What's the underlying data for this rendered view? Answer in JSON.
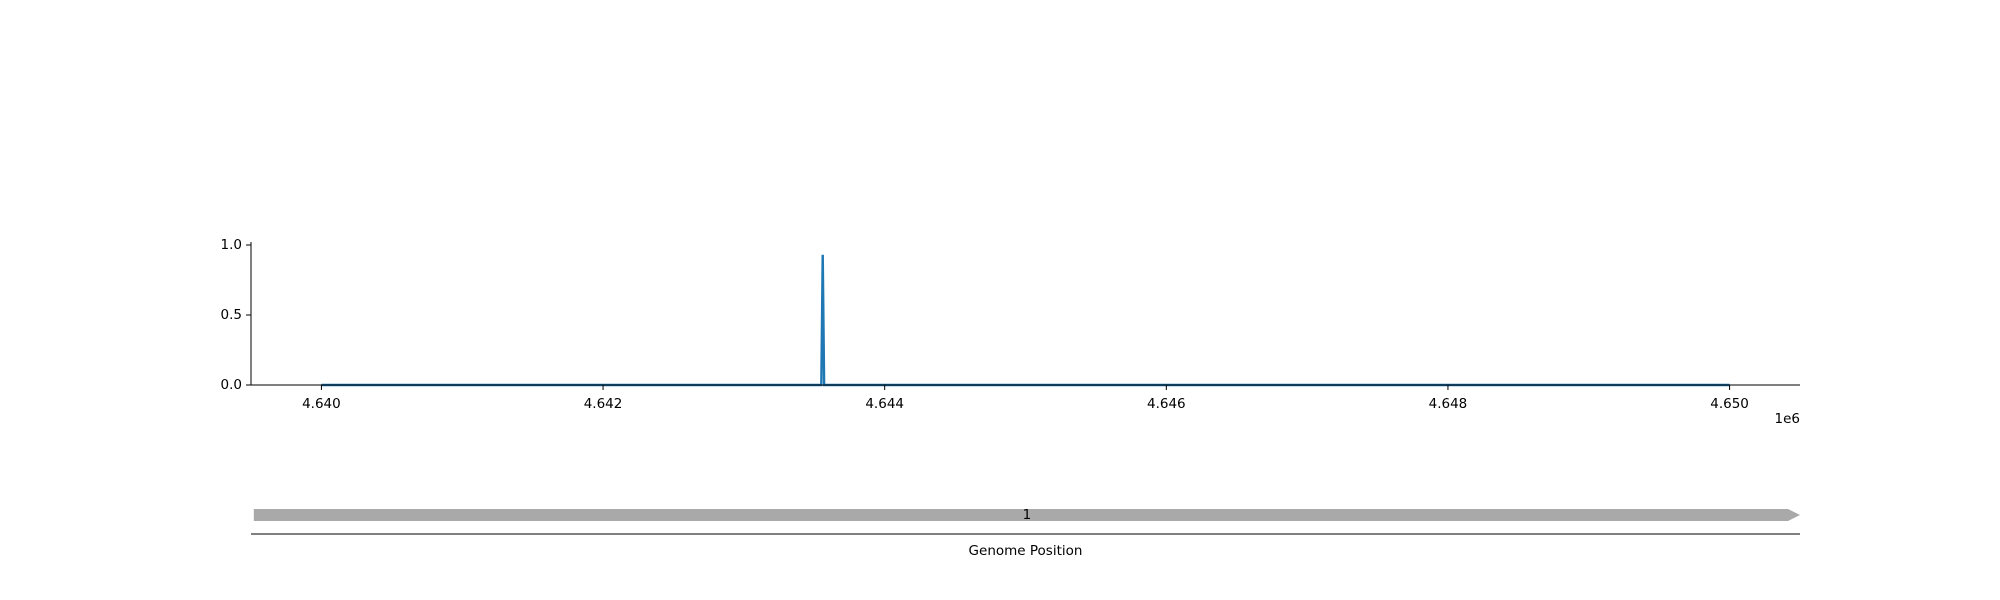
{
  "chart_data": [
    {
      "type": "line",
      "x": [
        4640000,
        4643550,
        4643560,
        4643570,
        4650000
      ],
      "series": [
        {
          "values": [
            0.0,
            0.0,
            0.93,
            0.0,
            0.0
          ],
          "color": "#1f77b4"
        }
      ],
      "ylim": [
        0.0,
        1.0
      ],
      "yticks": [
        0.0,
        0.5,
        1.0
      ],
      "ytick_labels": [
        "0.0",
        "0.5",
        "1.0"
      ],
      "xlim": [
        4639500,
        4650500
      ],
      "xticks": [
        4640000,
        4642000,
        4644000,
        4646000,
        4648000,
        4650000
      ],
      "xtick_labels": [
        "4.640",
        "4.642",
        "4.644",
        "4.646",
        "4.648",
        "4.650"
      ],
      "x_offset_label": "1e6",
      "grid": false,
      "spines": "left-bottom"
    },
    {
      "type": "gene-track",
      "xlabel": "Genome Position",
      "features": [
        {
          "label": "1",
          "start": 4639520,
          "end": 4650500,
          "strand": "+",
          "color": "#a9a9a9"
        }
      ]
    }
  ]
}
